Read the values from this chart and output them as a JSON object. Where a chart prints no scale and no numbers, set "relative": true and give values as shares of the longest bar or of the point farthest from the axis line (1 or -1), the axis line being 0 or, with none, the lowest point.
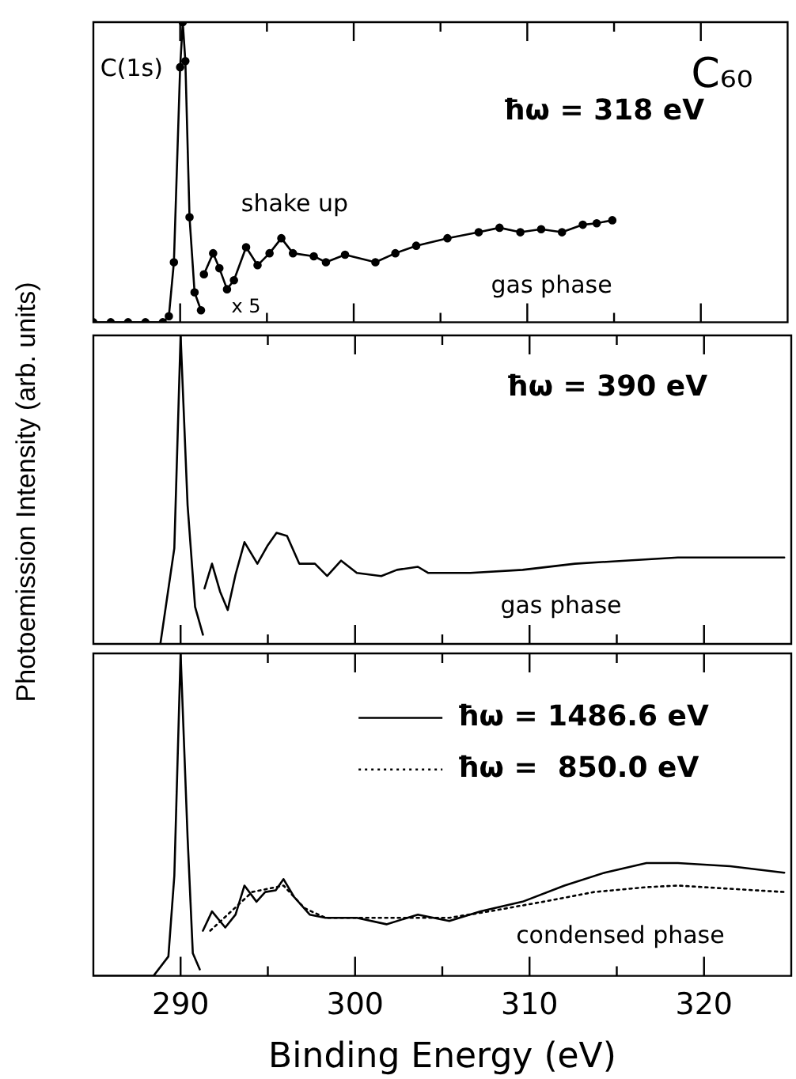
{
  "chart_data": [
    {
      "type": "line",
      "relative": true,
      "marker": "circle",
      "xlim": [
        285,
        325
      ],
      "xticks": [
        290,
        {
          "value": 295,
          "label": null
        },
        300,
        {
          "value": 305,
          "label": null
        },
        310,
        {
          "value": 315,
          "label": null
        },
        320
      ],
      "tick_labels": false,
      "annotations": [
        "C(1s)",
        "C₆₀",
        "ħω = 318 eV",
        "shake up",
        "x 5",
        "gas phase"
      ],
      "series": [
        {
          "color": "#000000",
          "x": [
            285,
            286,
            287,
            288,
            289,
            289.35,
            289.64,
            290.0,
            290.15,
            290.3,
            290.54,
            290.83,
            291.2
          ],
          "values": [
            0,
            0,
            0,
            0,
            0,
            0.02,
            0.2,
            0.85,
            1.0,
            0.87,
            0.35,
            0.1,
            0.04
          ]
        },
        {
          "color": "#000000",
          "x": [
            291.37,
            291.9,
            292.26,
            292.7,
            293.1,
            293.8,
            294.46,
            295.15,
            295.83,
            296.5,
            297.7,
            298.4,
            299.5,
            301.25,
            302.4,
            303.6,
            305.4,
            307.2,
            308.4,
            309.6,
            310.8,
            312.0,
            313.2,
            314.0,
            314.9
          ],
          "values": [
            0.16,
            0.23,
            0.18,
            0.11,
            0.14,
            0.25,
            0.19,
            0.23,
            0.28,
            0.23,
            0.22,
            0.2,
            0.225,
            0.2,
            0.23,
            0.255,
            0.28,
            0.3,
            0.315,
            0.3,
            0.31,
            0.3,
            0.325,
            0.33,
            0.34
          ]
        }
      ]
    },
    {
      "type": "line",
      "relative": true,
      "ylabel": "Photoemission Intensity (arb. units)",
      "xlim": [
        285,
        325
      ],
      "xticks": [
        290,
        {
          "value": 295,
          "label": null
        },
        300,
        {
          "value": 305,
          "label": null
        },
        310,
        {
          "value": 315,
          "label": null
        },
        320
      ],
      "tick_labels": false,
      "annotations": [
        "ħω = 390 eV",
        "gas phase"
      ],
      "series": [
        {
          "color": "#000000",
          "x": [
            288.84,
            289.64,
            290.0,
            290.4,
            290.83,
            291.28
          ],
          "values": [
            0,
            0.31,
            1,
            0.45,
            0.12,
            0.03
          ]
        },
        {
          "color": "#000000",
          "x": [
            291.37,
            291.8,
            292.26,
            292.7,
            293.15,
            293.66,
            294.4,
            295.0,
            295.5,
            296.1,
            296.8,
            297.7,
            298.4,
            299.2,
            300.1,
            301.5,
            302.4,
            303.6,
            304.2,
            306.6,
            309.6,
            312.6,
            315.5,
            318.5,
            321.5,
            324.6
          ],
          "values": [
            0.18,
            0.26,
            0.17,
            0.11,
            0.225,
            0.33,
            0.26,
            0.32,
            0.36,
            0.35,
            0.26,
            0.26,
            0.22,
            0.27,
            0.23,
            0.22,
            0.24,
            0.25,
            0.23,
            0.23,
            0.24,
            0.26,
            0.27,
            0.28,
            0.28,
            0.28
          ]
        }
      ]
    },
    {
      "type": "line",
      "relative": true,
      "xlabel": "Binding Energy (eV)",
      "xlim": [
        285,
        325
      ],
      "xticks": [
        290,
        {
          "value": 295,
          "label": null
        },
        300,
        {
          "value": 305,
          "label": null
        },
        310,
        {
          "value": 315,
          "label": null
        },
        320
      ],
      "tick_labels": "x",
      "legend": "top right",
      "annotations": [
        "condensed phase"
      ],
      "series": [
        {
          "color": "#000000",
          "line_style": "solid",
          "x": [
            285,
            286,
            287,
            288,
            288.45,
            289.3,
            289.64,
            290.0,
            290.4,
            290.7,
            291.1
          ],
          "values": [
            0,
            0,
            0,
            0,
            0,
            0.06,
            0.31,
            1,
            0.43,
            0.07,
            0.02
          ]
        },
        {
          "name": "ħω = 1486.6 eV",
          "color": "#000000",
          "line_style": "solid",
          "x": [
            291.28,
            291.8,
            292.56,
            293.15,
            293.66,
            294.35,
            294.85,
            295.45,
            295.9,
            296.5,
            297.4,
            298.3,
            300.1,
            301.8,
            303.6,
            305.4,
            307.2,
            309.6,
            312.0,
            314.3,
            316.7,
            318.5,
            321.5,
            324.6
          ],
          "values": [
            0.14,
            0.2,
            0.15,
            0.19,
            0.28,
            0.23,
            0.26,
            0.265,
            0.3,
            0.245,
            0.19,
            0.18,
            0.18,
            0.16,
            0.19,
            0.17,
            0.2,
            0.23,
            0.28,
            0.32,
            0.35,
            0.35,
            0.34,
            0.32
          ]
        },
        {
          "name": "ħω =  850.0 eV",
          "color": "#000000",
          "line_style": "dotted",
          "x": [
            291.7,
            292.9,
            294.1,
            295.9,
            297.1,
            298.3,
            300.7,
            303.6,
            305.4,
            307.7,
            310.8,
            313.7,
            316.7,
            318.5,
            321.5,
            324.6
          ],
          "values": [
            0.14,
            0.2,
            0.26,
            0.28,
            0.21,
            0.18,
            0.18,
            0.18,
            0.18,
            0.2,
            0.23,
            0.26,
            0.275,
            0.28,
            0.27,
            0.26
          ]
        }
      ]
    }
  ]
}
